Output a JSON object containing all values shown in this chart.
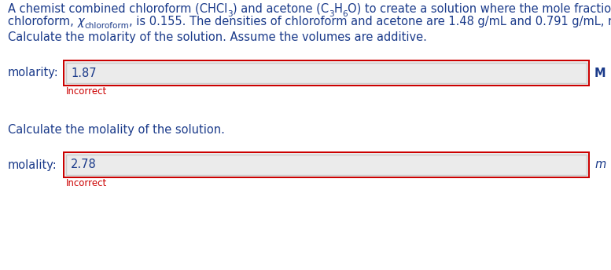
{
  "bg_color": "#ffffff",
  "blue": "#1a3a8a",
  "red": "#cc0000",
  "line3": "Calculate the molarity of the solution. Assume the volumes are additive.",
  "label1": "molarity:",
  "value1": "1.87",
  "unit1": "M",
  "incorrect1": "Incorrect",
  "line4": "Calculate the molality of the solution.",
  "label2": "molality:",
  "value2": "2.78",
  "unit2": "m",
  "incorrect2": "Incorrect",
  "box_bg": "#ebebeb",
  "box_border": "#cc0000",
  "fig_width": 7.77,
  "fig_height": 3.44,
  "dpi": 100
}
